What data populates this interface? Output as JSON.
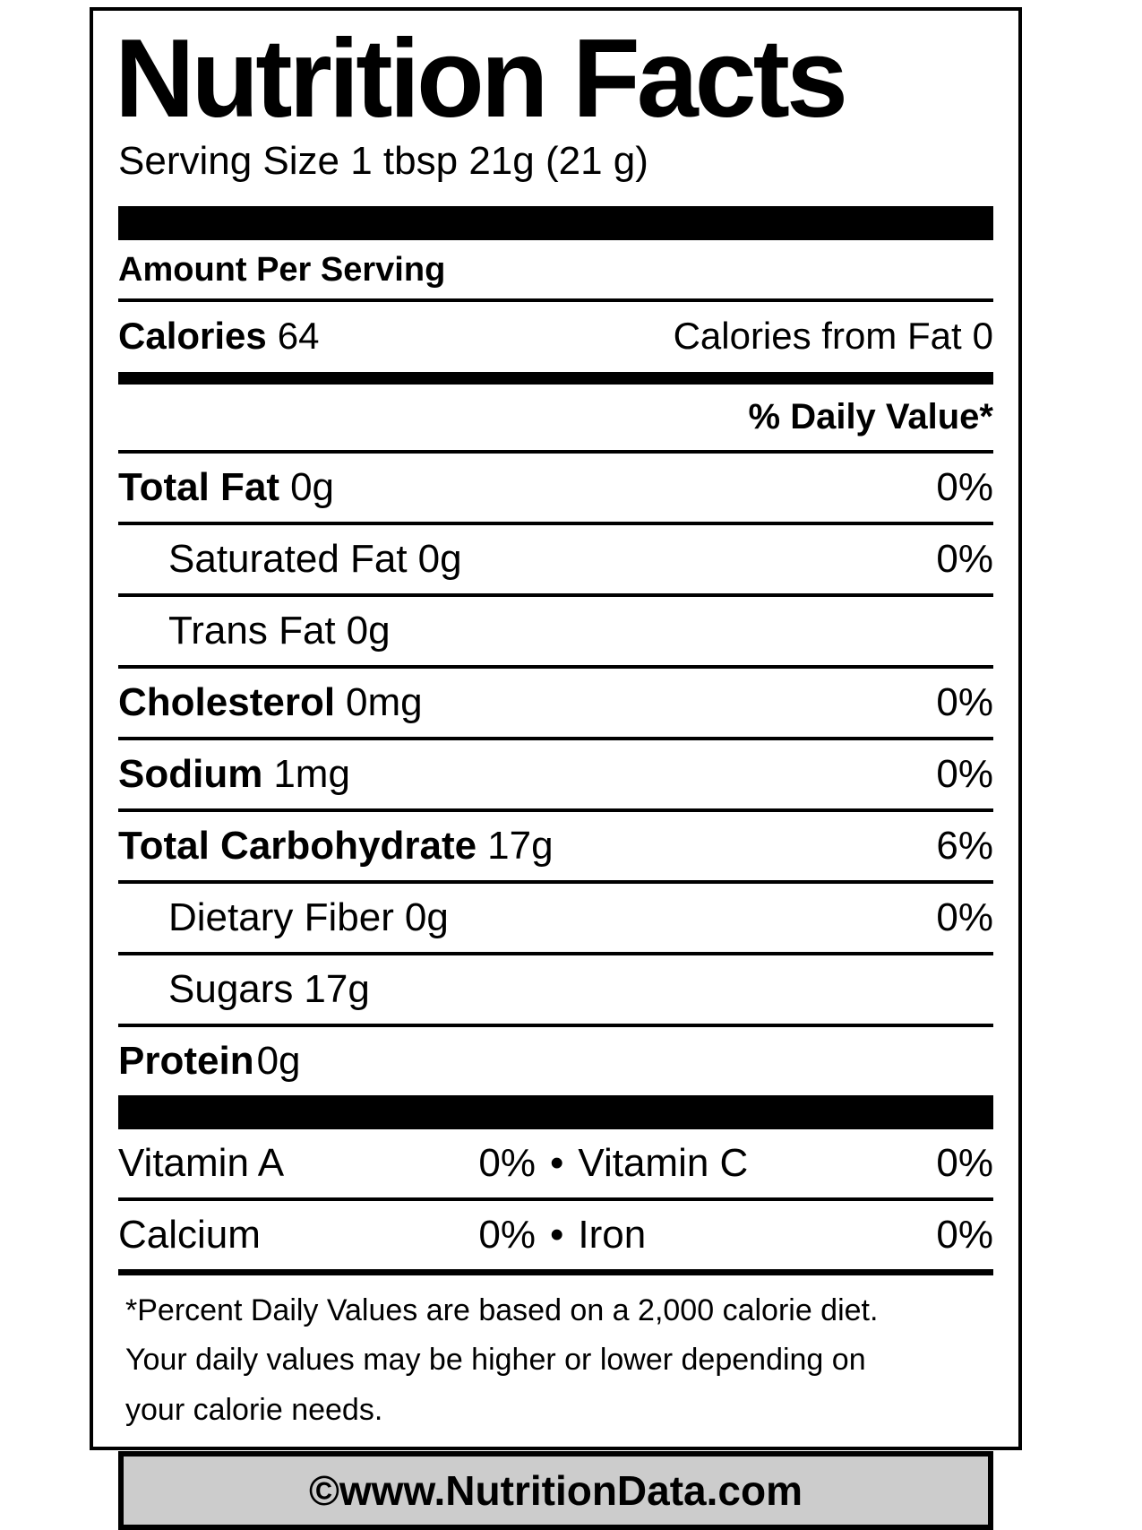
{
  "colors": {
    "text": "#000000",
    "background": "#ffffff",
    "divider_bars": "#000000",
    "copyright_box_bg": "#cccccc"
  },
  "label": {
    "title": "Nutrition Facts",
    "serving_size": "Serving Size 1 tbsp 21g (21 g)",
    "amount_per_serving": "Amount Per Serving",
    "calories": {
      "label": "Calories",
      "value": "64",
      "from_fat_label": "Calories from Fat",
      "from_fat_value": "0"
    },
    "daily_value_header": "% Daily Value*",
    "nutrients": [
      {
        "name": "Total Fat",
        "amount": "0g",
        "daily_value": "0%"
      },
      {
        "name": "Saturated Fat",
        "amount": "0g",
        "daily_value": "0%"
      },
      {
        "name": "Trans Fat",
        "amount": "0g",
        "daily_value": ""
      },
      {
        "name": "Cholesterol",
        "amount": "0mg",
        "daily_value": "0%"
      },
      {
        "name": "Sodium",
        "amount": "1mg",
        "daily_value": "0%"
      },
      {
        "name": "Total Carbohydrate",
        "amount": "17g",
        "daily_value": "6%"
      },
      {
        "name": "Dietary Fiber",
        "amount": "0g",
        "daily_value": "0%"
      },
      {
        "name": "Sugars",
        "amount": "17g",
        "daily_value": ""
      },
      {
        "name": "Protein",
        "amount": "0g",
        "daily_value": ""
      }
    ],
    "micronutrients": {
      "bullet": "•",
      "rows": [
        {
          "left_name": "Vitamin A",
          "left_value": "0%",
          "right_name": "Vitamin C",
          "right_value": "0%"
        },
        {
          "left_name": "Calcium",
          "left_value": "0%",
          "right_name": "Iron",
          "right_value": "0%"
        }
      ]
    },
    "footnote_lines": [
      "*Percent Daily Values are based on a 2,000 calorie diet.",
      "Your daily values may be higher or lower depending on",
      "your calorie needs."
    ],
    "copyright": "©www.NutritionData.com"
  }
}
